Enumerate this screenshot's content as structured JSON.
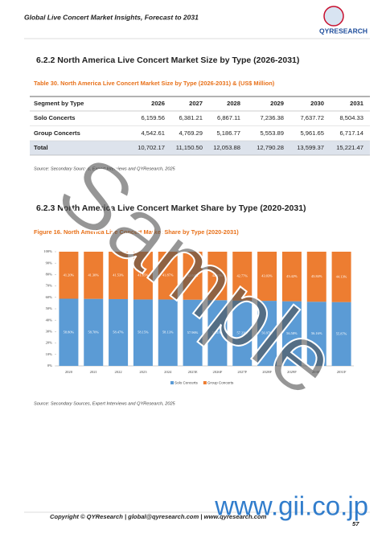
{
  "header": {
    "title": "Global Live Concert Market Insights, Forecast to 2031",
    "logo": "QYRESEARCH"
  },
  "section1": {
    "title": "6.2.2  North America Live Concert Market Size by Type (2026-2031)"
  },
  "table": {
    "caption": "Table 30.   North America Live Concert Market Size by Type (2026-2031) & (US$ Million)",
    "header": [
      "Segment by Type",
      "2026",
      "2027",
      "2028",
      "2029",
      "2030",
      "2031"
    ],
    "rows": [
      [
        "Solo Concerts",
        "6,159.56",
        "6,381.21",
        "6,867.11",
        "7,236.38",
        "7,637.72",
        "8,504.33"
      ],
      [
        "Group Concerts",
        "4,542.61",
        "4,769.29",
        "5,186.77",
        "5,553.89",
        "5,961.65",
        "6,717.14"
      ],
      [
        "Total",
        "10,702.17",
        "11,150.50",
        "12,053.88",
        "12,790.28",
        "13,599.37",
        "15,221.47"
      ]
    ]
  },
  "source1": "Source: Secondary Sources, Expert Interviews and QYResearch, 2025",
  "section2": {
    "title": "6.2.3  North America Live Concert Market Share by Type (2020-2031)"
  },
  "figure_caption": "Figure 16.   North America Live Concert Market Share by Type (2020-2031)",
  "chart_data": {
    "type": "stacked-bar",
    "categories": [
      "2020",
      "2021",
      "2022",
      "2023",
      "2024",
      "2025E",
      "2026F",
      "2027F",
      "2028F",
      "2029F",
      "2030F",
      "2031F"
    ],
    "series": [
      {
        "name": "Solo Concerts",
        "color": "#5b9bd5",
        "values": [
          58.8,
          58.7,
          58.47,
          58.15,
          58.13,
          57.96,
          57.55,
          57.23,
          56.97,
          56.58,
          56.16,
          55.87
        ],
        "value_labels": [
          "58.80%",
          "58.70%",
          "58.47%",
          "58.15%",
          "58.13%",
          "57.96%",
          "57.55%",
          "57.23%",
          "56.97%",
          "56.58%",
          "56.16%",
          "55.87%"
        ]
      },
      {
        "name": "Group Concerts",
        "color": "#ed7d31",
        "values": [
          41.2,
          41.3,
          41.53,
          41.85,
          41.87,
          42.04,
          42.45,
          42.77,
          43.03,
          43.42,
          43.84,
          44.13
        ],
        "value_labels": [
          "41.20%",
          "41.30%",
          "41.53%",
          "41.85%",
          "41.87%",
          "42.04%",
          "42.45%",
          "42.77%",
          "43.03%",
          "43.42%",
          "43.84%",
          "44.13%"
        ]
      }
    ],
    "ylim": [
      0,
      100
    ],
    "yticks": [
      {
        "value": 0,
        "label": "0%"
      },
      {
        "value": 10,
        "label": "10%"
      },
      {
        "value": 20,
        "label": "20%"
      },
      {
        "value": 30,
        "label": "30%"
      },
      {
        "value": 40,
        "label": "40%"
      },
      {
        "value": 50,
        "label": "50%"
      },
      {
        "value": 60,
        "label": "60%"
      },
      {
        "value": 70,
        "label": "70%"
      },
      {
        "value": 80,
        "label": "80%"
      },
      {
        "value": 90,
        "label": "90%"
      },
      {
        "value": 100,
        "label": "100%"
      }
    ],
    "legend": "bottom"
  },
  "source2": "Source: Secondary Sources, Expert Interviews and QYResearch, 2025",
  "footer": {
    "copyright": "Copyright © QYResearch | global@qyresearch.com | www.qyresearch.com",
    "page": "57"
  },
  "watermark": {
    "sample": "Sample",
    "site": "www.gii.co.jp"
  }
}
